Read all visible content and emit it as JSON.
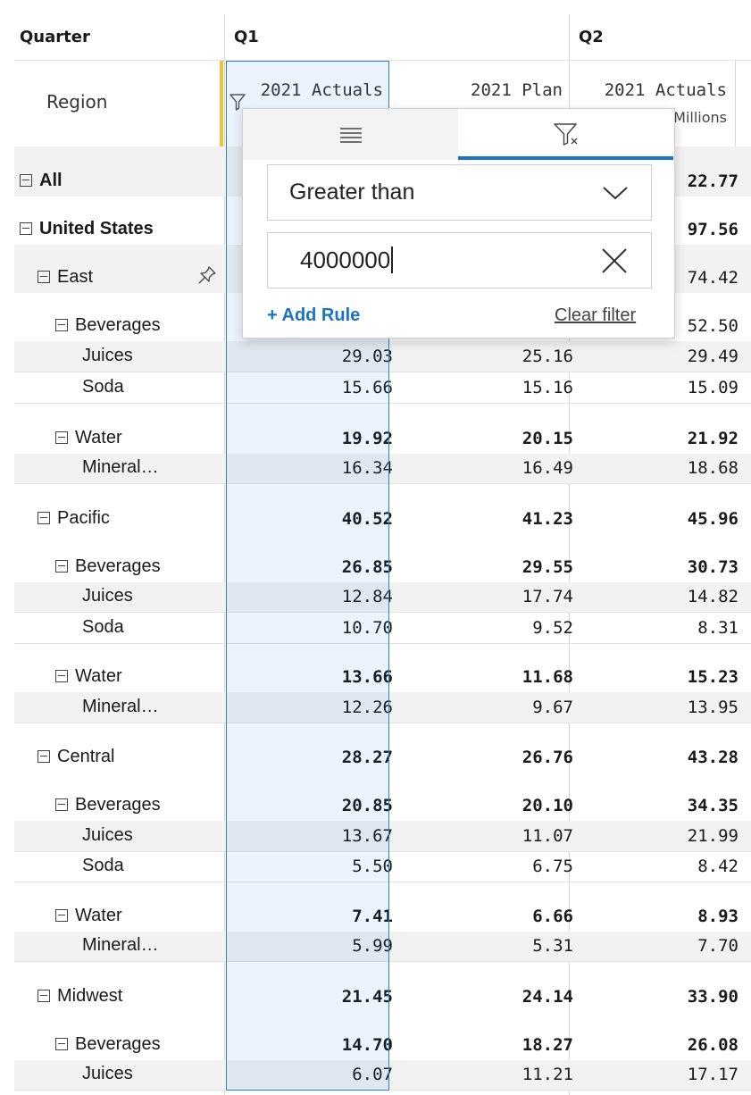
{
  "header": {
    "quarter_label": "Quarter",
    "q1_label": "Q1",
    "q2_label": "Q2",
    "region_label": "Region",
    "measures": {
      "q1_actuals": "2021 Actuals",
      "q1_plan": "2021 Plan",
      "q2_actuals": "2021 Actuals",
      "q2_subtitle": "Millions"
    }
  },
  "filter_popup": {
    "operator": "Greater than",
    "value": "4000000",
    "add_rule": "+ Add Rule",
    "clear_filter": "Clear filter"
  },
  "rows": [
    {
      "label": "All",
      "values": [
        "",
        "",
        "22.77"
      ]
    },
    {
      "label": "United States",
      "values": [
        "",
        "",
        "97.56"
      ]
    },
    {
      "label": "East",
      "values": [
        "",
        "",
        "74.42"
      ]
    },
    {
      "label": "Beverages",
      "values": [
        "",
        "",
        "52.50"
      ]
    },
    {
      "label": "Juices",
      "values": [
        "29.03",
        "25.16",
        "29.49"
      ]
    },
    {
      "label": "Soda",
      "values": [
        "15.66",
        "15.16",
        "15.09"
      ]
    },
    {
      "label": "Water",
      "values": [
        "19.92",
        "20.15",
        "21.92"
      ]
    },
    {
      "label": "Mineral…",
      "values": [
        "16.34",
        "16.49",
        "18.68"
      ]
    },
    {
      "label": "Pacific",
      "values": [
        "40.52",
        "41.23",
        "45.96"
      ]
    },
    {
      "label": "Beverages",
      "values": [
        "26.85",
        "29.55",
        "30.73"
      ]
    },
    {
      "label": "Juices",
      "values": [
        "12.84",
        "17.74",
        "14.82"
      ]
    },
    {
      "label": "Soda",
      "values": [
        "10.70",
        "9.52",
        "8.31"
      ]
    },
    {
      "label": "Water",
      "values": [
        "13.66",
        "11.68",
        "15.23"
      ]
    },
    {
      "label": "Mineral…",
      "values": [
        "12.26",
        "9.67",
        "13.95"
      ]
    },
    {
      "label": "Central",
      "values": [
        "28.27",
        "26.76",
        "43.28"
      ]
    },
    {
      "label": "Beverages",
      "values": [
        "20.85",
        "20.10",
        "34.35"
      ]
    },
    {
      "label": "Juices",
      "values": [
        "13.67",
        "11.07",
        "21.99"
      ]
    },
    {
      "label": "Soda",
      "values": [
        "5.50",
        "6.75",
        "8.42"
      ]
    },
    {
      "label": "Water",
      "values": [
        "7.41",
        "6.66",
        "8.93"
      ]
    },
    {
      "label": "Mineral…",
      "values": [
        "5.99",
        "5.31",
        "7.70"
      ]
    },
    {
      "label": "Midwest",
      "values": [
        "21.45",
        "24.14",
        "33.90"
      ]
    },
    {
      "label": "Beverages",
      "values": [
        "14.70",
        "18.27",
        "26.08"
      ]
    },
    {
      "label": "Juices",
      "values": [
        "6.07",
        "11.21",
        "17.17"
      ]
    }
  ],
  "icons": {
    "column_filter": "filter-icon",
    "pin": "pin-icon",
    "list_tab": "list-icon",
    "clear_filter_tab": "filter-clear-icon",
    "dropdown": "chevron-down-icon",
    "clear_value": "close-icon",
    "collapse": "collapse-icon"
  },
  "colors": {
    "accent": "#1a73c8",
    "selection_border": "#2d7fd3",
    "pinned_marker": "#e8c53a"
  }
}
